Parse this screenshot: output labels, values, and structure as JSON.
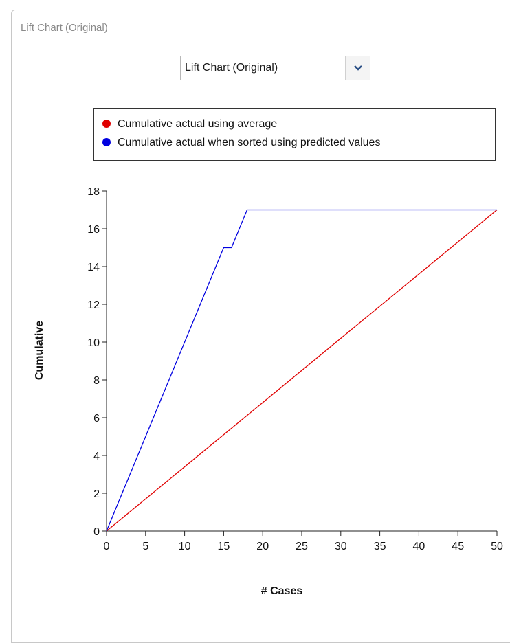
{
  "panel": {
    "title": "Lift Chart (Original)"
  },
  "selector": {
    "value": "Lift Chart (Original)",
    "icon": "chevron-down-icon"
  },
  "colors": {
    "average": "#e00000",
    "predicted": "#0000e0"
  },
  "chart_data": {
    "type": "line",
    "xlabel": "# Cases",
    "ylabel": "Cumulative",
    "xlim": [
      0,
      50
    ],
    "ylim": [
      0,
      18
    ],
    "xticks": [
      0,
      5,
      10,
      15,
      20,
      25,
      30,
      35,
      40,
      45,
      50
    ],
    "yticks": [
      0,
      2,
      4,
      6,
      8,
      10,
      12,
      14,
      16,
      18
    ],
    "grid": false,
    "legend_position": "top",
    "series": [
      {
        "name": "Cumulative actual using average",
        "color": "#e00000",
        "x": [
          0,
          50
        ],
        "y": [
          0,
          17
        ]
      },
      {
        "name": "Cumulative actual when sorted using predicted values",
        "color": "#0000e0",
        "x": [
          0,
          15,
          16,
          18,
          50
        ],
        "y": [
          0,
          15,
          15,
          17,
          17
        ]
      }
    ]
  }
}
